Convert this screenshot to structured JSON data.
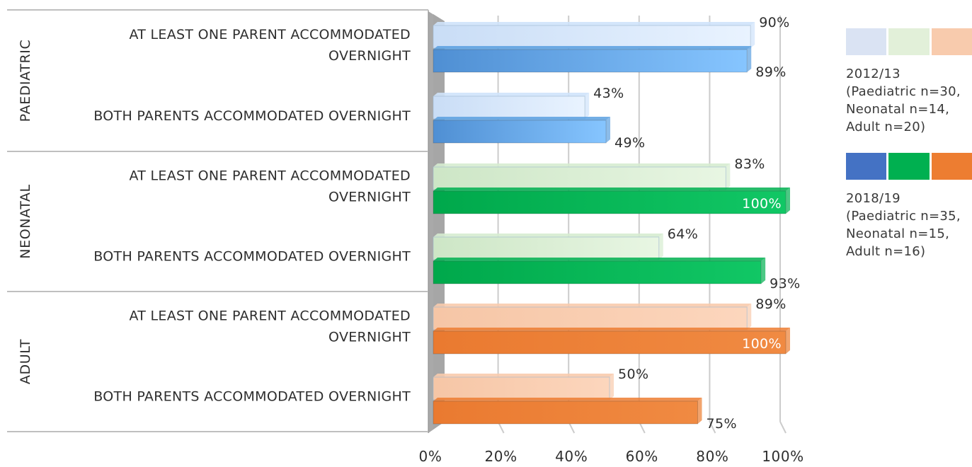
{
  "chart_data": {
    "type": "bar",
    "orientation": "horizontal",
    "groups": [
      {
        "name": "PAEDIATRIC",
        "categories": [
          {
            "label": "AT LEAST ONE PARENT ACCOMMODATED OVERNIGHT",
            "values": [
              90,
              89
            ]
          },
          {
            "label": "BOTH PARENTS ACCOMMODATED OVERNIGHT",
            "values": [
              43,
              49
            ]
          }
        ]
      },
      {
        "name": "NEONATAL",
        "categories": [
          {
            "label": "AT LEAST ONE PARENT ACCOMMODATED OVERNIGHT",
            "values": [
              83,
              100
            ]
          },
          {
            "label": "BOTH PARENTS ACCOMMODATED OVERNIGHT",
            "values": [
              64,
              93
            ]
          }
        ]
      },
      {
        "name": "ADULT",
        "categories": [
          {
            "label": "AT LEAST ONE PARENT ACCOMMODATED OVERNIGHT",
            "values": [
              89,
              100
            ]
          },
          {
            "label": "BOTH PARENTS ACCOMMODATED OVERNIGHT",
            "values": [
              50,
              75
            ]
          }
        ]
      }
    ],
    "series": [
      {
        "name": "2012/13\n(Paediatric n=30,\nNeonatal n=14,\nAdult n=20)",
        "colors": [
          "#dae3f3",
          "#e2f0d9",
          "#f8cbad"
        ]
      },
      {
        "name": "2018/19\n(Paediatric n=35,\nNeonatal n=15,\nAdult n=16)",
        "colors": [
          "#4472c4",
          "#00b050",
          "#ed7d31"
        ]
      }
    ],
    "bar_colors": {
      "PAEDIATRIC": [
        "#cfe3fb",
        "#5ba0e0"
      ],
      "NEONATAL": [
        "#d6ecd0",
        "#00b050"
      ],
      "ADULT": [
        "#f8cbad",
        "#ed7d31"
      ]
    },
    "xlim": [
      0,
      100
    ],
    "x_ticks": [
      "0%",
      "20%",
      "40%",
      "60%",
      "80%",
      "100%"
    ],
    "grid": true,
    "legend_position": "right",
    "value_format": "percent"
  }
}
